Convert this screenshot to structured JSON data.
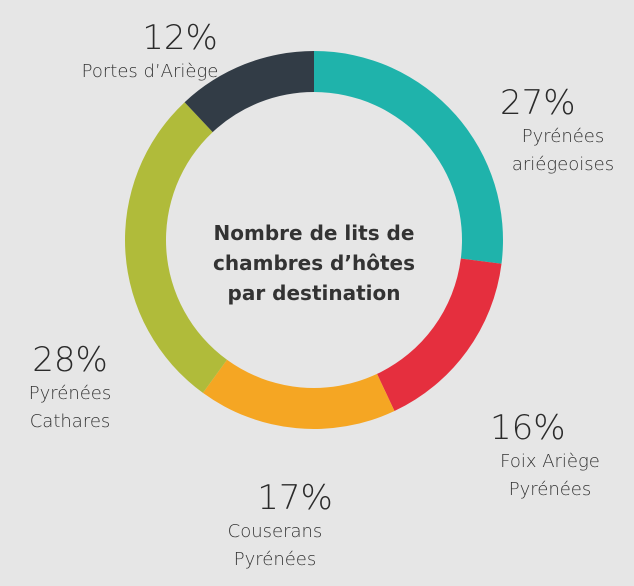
{
  "chart_data": {
    "type": "donut",
    "title": "Nombre de lits de chambres d’hôtes par destination",
    "categories": [
      "Pyrénées ariégeoises",
      "Foix Ariège Pyrénées",
      "Couserans Pyrénées",
      "Pyrénées Cathares",
      "Portes d’Ariège"
    ],
    "values": [
      27,
      16,
      17,
      28,
      12
    ],
    "value_labels": [
      "27%",
      "16%",
      "17%",
      "28%",
      "12%"
    ],
    "colors": [
      "#1fb3ab",
      "#e52f3e",
      "#f5a623",
      "#b0bb3a",
      "#323c46"
    ]
  }
}
